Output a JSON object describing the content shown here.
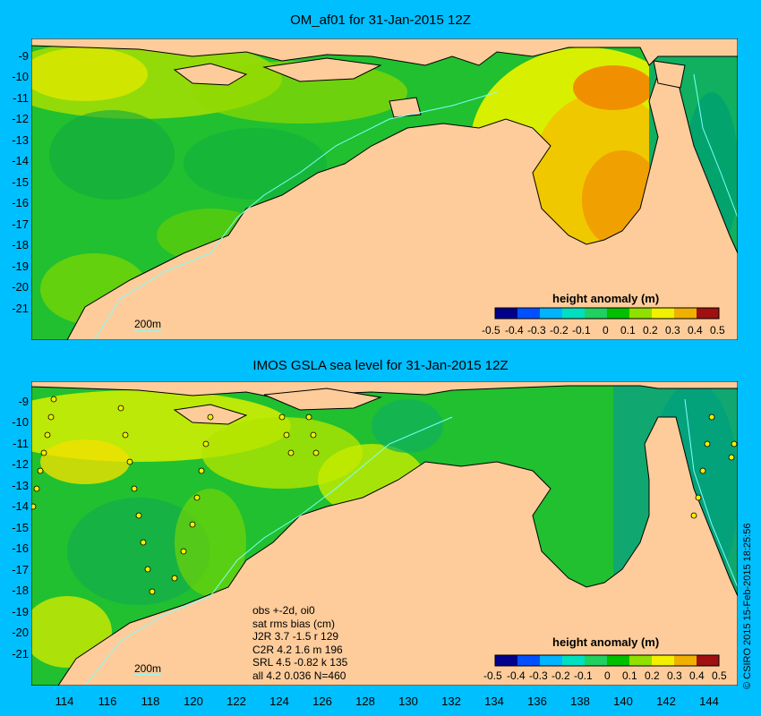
{
  "top_panel": {
    "title": "OM_af01 for 31-Jan-2015 12Z",
    "colorbar_title": "height anomaly (m)",
    "scale_label": "200m"
  },
  "bottom_panel": {
    "title": "IMOS GSLA sea level  for 31-Jan-2015 12Z",
    "colorbar_title": "height anomaly (m)",
    "scale_label": "200m",
    "stats": [
      "obs +-2d, oi0",
      "sat rms bias (cm)",
      "J2R   3.7 -1.5 r 129",
      "C2R   4.2 1.6 m 196",
      "SRL   4.5 -0.82 k 135",
      "all   4.2 0.036 N=460"
    ]
  },
  "colorbar": {
    "ticks": [
      "-0.5",
      "-0.4",
      "-0.3",
      "-0.2",
      "-0.1",
      "0",
      "0.1",
      "0.2",
      "0.3",
      "0.4",
      "0.5"
    ],
    "colors": [
      "#00008B",
      "#0050FF",
      "#00B4FF",
      "#00E0C0",
      "#20D060",
      "#00C000",
      "#90E000",
      "#F0F000",
      "#F0B000",
      "#E06000",
      "#A01010"
    ]
  },
  "axes": {
    "y_labels": [
      "-9",
      "-10",
      "-11",
      "-12",
      "-13",
      "-14",
      "-15",
      "-16",
      "-17",
      "-18",
      "-19",
      "-20",
      "-21"
    ],
    "x_labels": [
      "114",
      "116",
      "118",
      "120",
      "122",
      "124",
      "126",
      "128",
      "130",
      "132",
      "134",
      "136",
      "138",
      "140",
      "142",
      "144"
    ]
  },
  "copyright": "© CSIRO 2015  15-Feb-2015 18:25:56",
  "colors": {
    "background": "#00BFFF",
    "land": "#FDCC9A",
    "ocean_green": "#20C030",
    "ocean_yellow": "#D8F000",
    "ocean_orange": "#F0A000"
  }
}
